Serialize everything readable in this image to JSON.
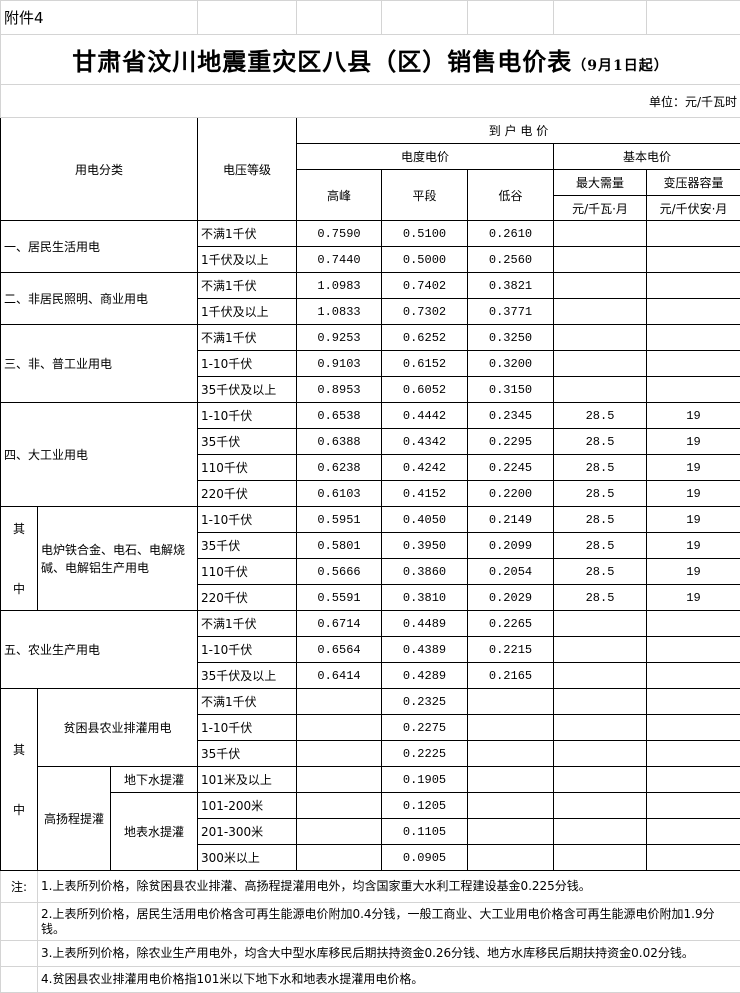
{
  "attachment": "附件4",
  "title": "甘肃省汶川地震重灾区八县（区）销售电价表",
  "title_suffix": "（9月1日起）",
  "unit": "单位：元/千瓦时",
  "header": {
    "category": "用电分类",
    "voltage": "电压等级",
    "to_user_price": "到 户 电 价",
    "energy_price": "电度电价",
    "basic_price": "基本电价",
    "peak": "高峰",
    "flat": "平段",
    "valley": "低谷",
    "max_demand": "最大需量",
    "transformer": "变压器容量",
    "max_demand_unit": "元/千瓦·月",
    "transformer_unit": "元/千伏安·月"
  },
  "qizhong": "其中",
  "groups": [
    {
      "label": "一、居民生活用电",
      "rows": [
        [
          "不满1千伏",
          "0.7590",
          "0.5100",
          "0.2610",
          "",
          ""
        ],
        [
          "1千伏及以上",
          "0.7440",
          "0.5000",
          "0.2560",
          "",
          ""
        ]
      ]
    },
    {
      "label": "二、非居民照明、商业用电",
      "rows": [
        [
          "不满1千伏",
          "1.0983",
          "0.7402",
          "0.3821",
          "",
          ""
        ],
        [
          "1千伏及以上",
          "1.0833",
          "0.7302",
          "0.3771",
          "",
          ""
        ]
      ]
    },
    {
      "label": "三、非、普工业用电",
      "rows": [
        [
          "不满1千伏",
          "0.9253",
          "0.6252",
          "0.3250",
          "",
          ""
        ],
        [
          "1-10千伏",
          "0.9103",
          "0.6152",
          "0.3200",
          "",
          ""
        ],
        [
          "35千伏及以上",
          "0.8953",
          "0.6052",
          "0.3150",
          "",
          ""
        ]
      ]
    },
    {
      "label": "四、大工业用电",
      "rows": [
        [
          "1-10千伏",
          "0.6538",
          "0.4442",
          "0.2345",
          "28.5",
          "19"
        ],
        [
          "35千伏",
          "0.6388",
          "0.4342",
          "0.2295",
          "28.5",
          "19"
        ],
        [
          "110千伏",
          "0.6238",
          "0.4242",
          "0.2245",
          "28.5",
          "19"
        ],
        [
          "220千伏",
          "0.6103",
          "0.4152",
          "0.2200",
          "28.5",
          "19"
        ]
      ]
    },
    {
      "label": "电炉铁合金、电石、电解烧碱、电解铝生产用电",
      "rows": [
        [
          "1-10千伏",
          "0.5951",
          "0.4050",
          "0.2149",
          "28.5",
          "19"
        ],
        [
          "35千伏",
          "0.5801",
          "0.3950",
          "0.2099",
          "28.5",
          "19"
        ],
        [
          "110千伏",
          "0.5666",
          "0.3860",
          "0.2054",
          "28.5",
          "19"
        ],
        [
          "220千伏",
          "0.5591",
          "0.3810",
          "0.2029",
          "28.5",
          "19"
        ]
      ]
    },
    {
      "label": "五、农业生产用电",
      "rows": [
        [
          "不满1千伏",
          "0.6714",
          "0.4489",
          "0.2265",
          "",
          ""
        ],
        [
          "1-10千伏",
          "0.6564",
          "0.4389",
          "0.2215",
          "",
          ""
        ],
        [
          "35千伏及以上",
          "0.6414",
          "0.4289",
          "0.2165",
          "",
          ""
        ]
      ]
    },
    {
      "label": "贫困县农业排灌用电",
      "rows": [
        [
          "不满1千伏",
          "",
          "0.2325",
          "",
          "",
          ""
        ],
        [
          "1-10千伏",
          "",
          "0.2275",
          "",
          "",
          ""
        ],
        [
          "35千伏",
          "",
          "0.2225",
          "",
          "",
          ""
        ]
      ]
    },
    {
      "label": "高扬程提灌",
      "sub": [
        {
          "label": "地下水提灌",
          "rows": [
            [
              "101米及以上",
              "",
              "0.1905",
              "",
              "",
              ""
            ]
          ]
        },
        {
          "label": "地表水提灌",
          "rows": [
            [
              "101-200米",
              "",
              "0.1205",
              "",
              "",
              ""
            ],
            [
              "201-300米",
              "",
              "0.1105",
              "",
              "",
              ""
            ],
            [
              "300米以上",
              "",
              "0.0905",
              "",
              "",
              ""
            ]
          ]
        }
      ]
    }
  ],
  "notes_label": "注:",
  "notes": [
    "1.上表所列价格，除贫困县农业排灌、高扬程提灌用电外，均含国家重大水利工程建设基金0.225分钱。",
    "2.上表所列价格，居民生活用电价格含可再生能源电价附加0.4分钱，一般工商业、大工业用电价格含可再生能源电价附加1.9分钱。",
    "3.上表所列价格，除农业生产用电外，均含大中型水库移民后期扶持资金0.26分钱、地方水库移民后期扶持资金0.02分钱。",
    "4.贫困县农业排灌用电价格指101米以下地下水和地表水提灌用电价格。"
  ]
}
